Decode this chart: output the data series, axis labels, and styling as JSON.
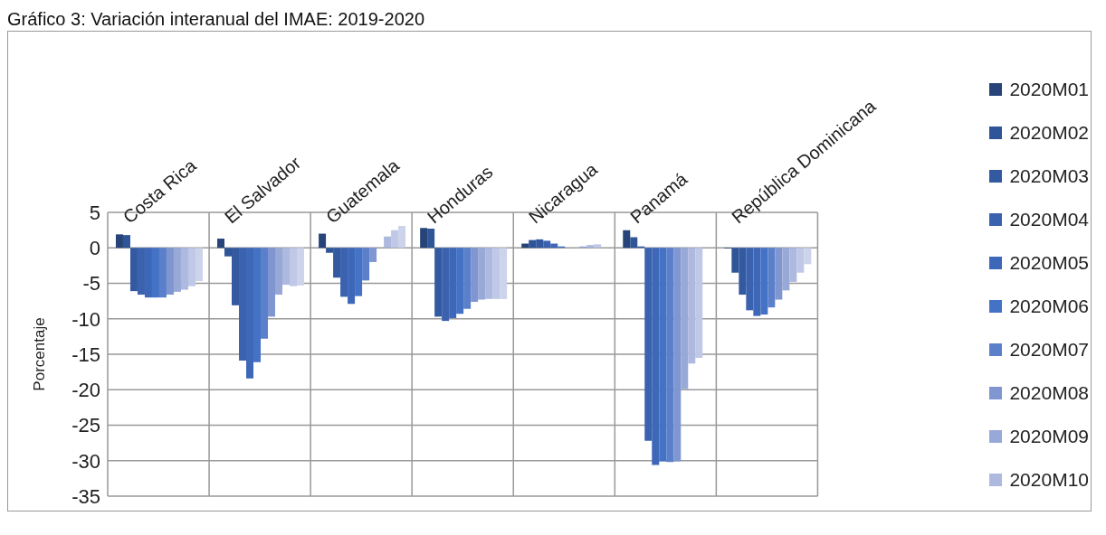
{
  "chart_data": {
    "type": "bar",
    "title": "Gráfico 3: Variación interanual del IMAE: 2019-2020",
    "ylabel": "Porcentaje",
    "categories": [
      "Costa Rica",
      "El Salvador",
      "Guatemala",
      "Honduras",
      "Nicaragua",
      "Panamá",
      "República Dominicana"
    ],
    "ylim": [
      -35,
      5
    ],
    "yticks": [
      5,
      0,
      -5,
      -10,
      -15,
      -20,
      -25,
      -30,
      -35
    ],
    "grid": true,
    "legend": "right",
    "series": [
      {
        "name": "2020M01",
        "color": "#264478",
        "values": [
          1.9,
          1.3,
          2.0,
          2.8,
          0.6,
          2.5,
          -0.1
        ]
      },
      {
        "name": "2020M02",
        "color": "#2e5597",
        "values": [
          1.8,
          -1.2,
          -0.7,
          2.7,
          1.1,
          1.5,
          -3.5
        ]
      },
      {
        "name": "2020M03",
        "color": "#335aa1",
        "values": [
          -6.1,
          -8.1,
          -4.2,
          -9.7,
          1.2,
          0.2,
          -6.6
        ]
      },
      {
        "name": "2020M04",
        "color": "#3a62ae",
        "values": [
          -6.6,
          -15.9,
          -6.9,
          -10.3,
          1.0,
          -27.2,
          -8.8
        ]
      },
      {
        "name": "2020M05",
        "color": "#3d67b8",
        "values": [
          -7.0,
          -18.4,
          -7.9,
          -9.9,
          0.6,
          -30.6,
          -9.6
        ]
      },
      {
        "name": "2020M06",
        "color": "#4472c4",
        "values": [
          -7.0,
          -16.1,
          -6.8,
          -9.3,
          0.2,
          -30.1,
          -9.4
        ]
      },
      {
        "name": "2020M07",
        "color": "#5b80cb",
        "values": [
          -7.0,
          -12.8,
          -4.6,
          -8.6,
          0,
          -30.2,
          -8.4
        ]
      },
      {
        "name": "2020M08",
        "color": "#7f96d1",
        "values": [
          -6.6,
          -9.7,
          -2.0,
          -7.6,
          0,
          -30.1,
          -7.3
        ]
      },
      {
        "name": "2020M09",
        "color": "#98a9d8",
        "values": [
          -6.2,
          -6.6,
          0,
          -7.3,
          0.2,
          -19.9,
          -6.0
        ]
      },
      {
        "name": "2020M10",
        "color": "#adb9df",
        "values": [
          -5.9,
          -5.2,
          1.6,
          -7.2,
          0.4,
          -16.3,
          -4.8
        ]
      },
      {
        "color": "#bfc8e6",
        "values": [
          -5.4,
          -5.4,
          2.5,
          -7.2,
          0.5,
          -15.5,
          -3.5
        ]
      },
      {
        "color": "#ccd3ea",
        "values": [
          -4.7,
          -5.3,
          3.1,
          -7.2,
          null,
          null,
          -2.3
        ]
      }
    ]
  }
}
